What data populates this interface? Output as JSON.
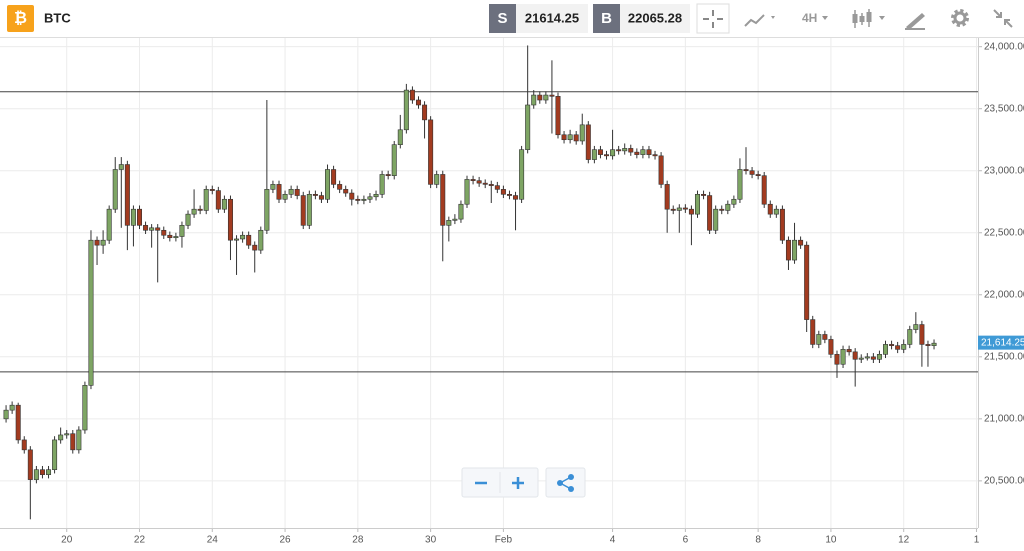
{
  "header": {
    "symbol": "BTC",
    "sell_label": "S",
    "sell_price": "21614.25",
    "buy_label": "B",
    "buy_price": "22065.28",
    "interval": "4H"
  },
  "chart_data": {
    "type": "candlestick",
    "x": [
      -40,
      -36,
      -32,
      -28,
      -24,
      -20,
      -16,
      -12,
      -8,
      -4,
      0,
      4,
      8,
      12,
      16,
      20,
      24,
      28,
      32,
      36,
      40,
      44,
      48,
      52,
      56,
      60,
      64,
      68,
      72,
      76,
      80,
      84,
      88,
      92,
      96,
      100,
      104,
      108,
      112,
      116,
      120,
      124,
      128,
      132,
      136,
      140,
      144,
      148,
      152,
      156,
      160,
      164,
      168,
      172,
      176,
      180,
      184,
      188,
      192,
      196,
      200,
      204,
      208,
      212,
      216,
      220,
      224,
      228,
      232,
      236,
      240,
      244,
      248,
      252,
      256,
      260,
      264,
      268,
      272,
      276,
      280,
      284,
      288,
      292,
      296,
      300,
      304,
      308,
      312,
      316,
      320,
      324,
      328,
      332,
      336,
      340,
      344,
      348,
      352,
      356,
      360,
      364,
      368,
      372,
      376,
      380,
      384,
      388,
      392,
      396,
      400,
      404,
      408,
      412,
      416,
      420,
      424,
      428,
      432,
      436,
      440,
      444,
      448,
      452,
      456,
      460,
      464,
      468,
      472,
      476,
      480,
      484,
      488,
      492,
      496,
      500,
      504,
      508,
      512,
      516,
      520,
      524,
      528,
      532,
      536,
      540,
      544,
      548,
      552,
      556,
      560,
      564,
      568,
      572
    ],
    "open": [
      21000,
      21070,
      21110,
      20830,
      20750,
      20510,
      20590,
      20550,
      20590,
      20830,
      20870,
      20880,
      20750,
      20910,
      21270,
      22440,
      22400,
      22440,
      22690,
      23010,
      23050,
      22560,
      22690,
      22560,
      22520,
      22540,
      22520,
      22480,
      22460,
      22470,
      22560,
      22650,
      22690,
      22680,
      22850,
      22840,
      22690,
      22770,
      22440,
      22450,
      22480,
      22400,
      22360,
      22520,
      22850,
      22890,
      22770,
      22810,
      22850,
      22800,
      22560,
      22810,
      22800,
      22770,
      23010,
      22890,
      22850,
      22820,
      22770,
      22760,
      22770,
      22790,
      22810,
      22970,
      22960,
      23210,
      23330,
      23650,
      23570,
      23530,
      23410,
      22890,
      22970,
      22560,
      22600,
      22610,
      22730,
      22930,
      22920,
      22900,
      22890,
      22880,
      22850,
      22810,
      22800,
      22770,
      23170,
      23530,
      23610,
      23570,
      23610,
      23600,
      23290,
      23250,
      23290,
      23240,
      23370,
      23090,
      23170,
      23130,
      23120,
      23170,
      23160,
      23180,
      23150,
      23130,
      23170,
      23130,
      23120,
      22890,
      22690,
      22680,
      22700,
      22690,
      22650,
      22810,
      22800,
      22520,
      22690,
      22680,
      22730,
      22770,
      23010,
      23000,
      22970,
      22960,
      22730,
      22650,
      22690,
      22440,
      22280,
      22440,
      22400,
      21800,
      21600,
      21680,
      21640,
      21520,
      21440,
      21560,
      21540,
      21480,
      21490,
      21500,
      21480,
      21520,
      21600,
      21590,
      21560,
      21600,
      21720,
      21760,
      21600,
      21590
    ],
    "high": [
      21110,
      21140,
      21130,
      20860,
      20780,
      20620,
      20620,
      20620,
      20860,
      20930,
      20910,
      20910,
      20940,
      21300,
      22520,
      22470,
      22520,
      22720,
      23110,
      23110,
      23080,
      22720,
      22720,
      22590,
      22570,
      22570,
      22550,
      22510,
      22500,
      22590,
      22680,
      22850,
      22720,
      22880,
      22880,
      22870,
      22800,
      22800,
      22480,
      22510,
      22510,
      22430,
      22550,
      23570,
      22920,
      22920,
      22840,
      22880,
      22880,
      22830,
      22840,
      22840,
      22830,
      23050,
      23040,
      22920,
      22880,
      22850,
      22800,
      22800,
      22820,
      22840,
      23000,
      23000,
      23240,
      23450,
      23700,
      23680,
      23600,
      23560,
      23440,
      23000,
      23000,
      22630,
      22650,
      22760,
      22960,
      22960,
      22950,
      22930,
      22920,
      22910,
      22880,
      22840,
      22830,
      23200,
      24010,
      23650,
      23640,
      23640,
      23890,
      23630,
      23320,
      23330,
      23320,
      23460,
      23400,
      23200,
      23200,
      23160,
      23330,
      23200,
      23220,
      23210,
      23180,
      23200,
      23200,
      23160,
      23150,
      22920,
      22720,
      22730,
      22730,
      22720,
      22840,
      22840,
      22830,
      22720,
      22720,
      22760,
      22800,
      23100,
      23190,
      23030,
      23000,
      22990,
      22760,
      22720,
      22720,
      22470,
      22580,
      22470,
      22430,
      21830,
      21710,
      21710,
      21670,
      21550,
      21590,
      21590,
      21570,
      21520,
      21530,
      21530,
      21550,
      21630,
      21630,
      21620,
      21640,
      21750,
      21860,
      21790,
      21630,
      21640
    ],
    "low": [
      20970,
      21040,
      20800,
      20720,
      20190,
      20480,
      20520,
      20520,
      20560,
      20800,
      20840,
      20720,
      20720,
      20880,
      21240,
      22240,
      22330,
      22410,
      22660,
      22540,
      22360,
      22390,
      22530,
      22490,
      22380,
      22100,
      22450,
      22430,
      22430,
      22380,
      22530,
      22620,
      22650,
      22650,
      22810,
      22660,
      22660,
      22280,
      22160,
      22420,
      22370,
      22180,
      22330,
      22490,
      22820,
      22740,
      22740,
      22780,
      22770,
      22530,
      22530,
      22770,
      22740,
      22740,
      22860,
      22820,
      22790,
      22720,
      22730,
      22730,
      22740,
      22760,
      22780,
      22930,
      22930,
      23180,
      23300,
      23540,
      23500,
      23260,
      22860,
      22860,
      22270,
      22430,
      22570,
      22580,
      22700,
      22890,
      22870,
      22860,
      22740,
      22820,
      22780,
      22770,
      22520,
      22740,
      23140,
      23500,
      23540,
      23540,
      23300,
      23260,
      23220,
      23220,
      23210,
      23210,
      23060,
      23060,
      23100,
      23090,
      23090,
      23130,
      23130,
      23120,
      23100,
      23100,
      23100,
      23090,
      22860,
      22500,
      22650,
      22500,
      22660,
      22400,
      22620,
      22770,
      22490,
      22490,
      22650,
      22650,
      22700,
      22740,
      22970,
      22940,
      22930,
      22700,
      22620,
      22620,
      22410,
      22200,
      22250,
      22370,
      21700,
      21570,
      21570,
      21610,
      21490,
      21330,
      21410,
      21510,
      21260,
      21450,
      21470,
      21450,
      21450,
      21490,
      21560,
      21530,
      21530,
      21570,
      21690,
      21420,
      21420,
      21560
    ],
    "close": [
      21070,
      21110,
      20830,
      20750,
      20510,
      20590,
      20550,
      20590,
      20830,
      20870,
      20880,
      20750,
      20910,
      21270,
      22440,
      22400,
      22440,
      22690,
      23010,
      23050,
      22560,
      22690,
      22560,
      22520,
      22540,
      22520,
      22480,
      22460,
      22470,
      22560,
      22650,
      22690,
      22680,
      22850,
      22840,
      22690,
      22770,
      22440,
      22450,
      22480,
      22400,
      22360,
      22520,
      22850,
      22890,
      22770,
      22810,
      22850,
      22800,
      22560,
      22810,
      22800,
      22770,
      23010,
      22890,
      22850,
      22820,
      22770,
      22760,
      22770,
      22790,
      22810,
      22970,
      22960,
      23210,
      23330,
      23650,
      23570,
      23530,
      23410,
      22890,
      22970,
      22560,
      22600,
      22610,
      22730,
      22930,
      22920,
      22900,
      22890,
      22880,
      22850,
      22810,
      22800,
      22770,
      23170,
      23530,
      23610,
      23570,
      23610,
      23600,
      23290,
      23250,
      23290,
      23240,
      23370,
      23090,
      23170,
      23130,
      23120,
      23170,
      23160,
      23180,
      23150,
      23130,
      23170,
      23130,
      23120,
      22890,
      22690,
      22680,
      22700,
      22690,
      22650,
      22810,
      22800,
      22520,
      22690,
      22680,
      22730,
      22770,
      23010,
      23000,
      22970,
      22960,
      22730,
      22650,
      22690,
      22440,
      22280,
      22440,
      22400,
      21800,
      21600,
      21680,
      21640,
      21520,
      21440,
      21560,
      21540,
      21480,
      21490,
      21500,
      21480,
      21520,
      21600,
      21590,
      21560,
      21600,
      21720,
      21760,
      21600,
      21590,
      21610
    ],
    "up_color": "#7ea564",
    "down_color": "#a23b20",
    "xlim": [
      -44,
      601
    ],
    "xticks": [
      {
        "value": 0,
        "label": "20"
      },
      {
        "value": 48,
        "label": "22"
      },
      {
        "value": 96,
        "label": "24"
      },
      {
        "value": 144,
        "label": "26"
      },
      {
        "value": 192,
        "label": "28"
      },
      {
        "value": 240,
        "label": "30"
      },
      {
        "value": 288,
        "label": "Feb"
      },
      {
        "value": 360,
        "label": "4"
      },
      {
        "value": 408,
        "label": "6"
      },
      {
        "value": 456,
        "label": "8"
      },
      {
        "value": 504,
        "label": "10"
      },
      {
        "value": 552,
        "label": "12"
      },
      {
        "value": 600,
        "label": "1"
      }
    ],
    "ylim": [
      20120,
      24070
    ],
    "yticks": [
      {
        "value": 20500,
        "label": "20,500.00"
      },
      {
        "value": 21000,
        "label": "21,000.00"
      },
      {
        "value": 21500,
        "label": "21,500.00"
      },
      {
        "value": 22000,
        "label": "22,000.00"
      },
      {
        "value": 22500,
        "label": "22,500.00"
      },
      {
        "value": 23000,
        "label": "23,000.00"
      },
      {
        "value": 23500,
        "label": "23,500.00"
      },
      {
        "value": 24000,
        "label": "24,000.00"
      }
    ],
    "hlines": [
      23637,
      21379
    ],
    "last_price": {
      "value": 21614.25,
      "label": "21,614.25"
    },
    "grid": true
  }
}
